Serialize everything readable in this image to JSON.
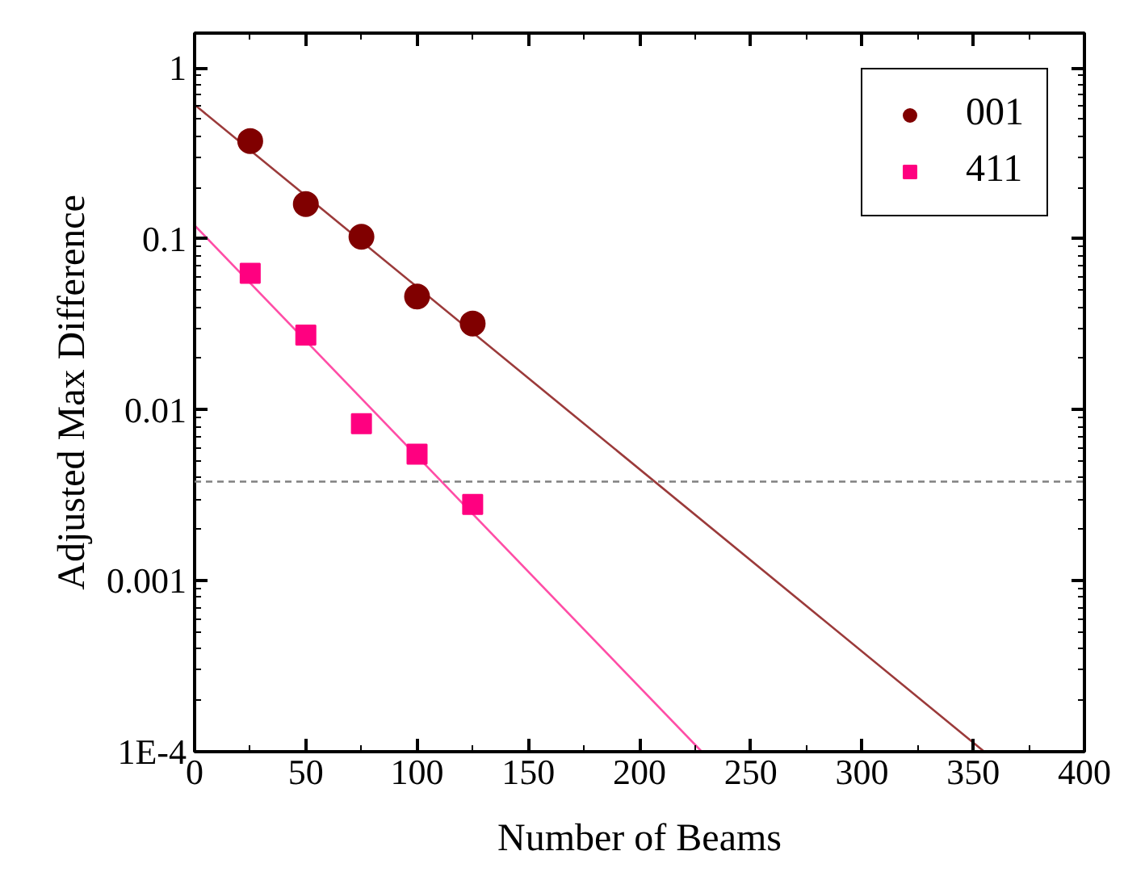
{
  "chart_data": {
    "type": "scatter",
    "xlabel": "Number of Beams",
    "ylabel": "Adjusted Max Difference",
    "log": "y",
    "grid": false,
    "legend": "top right",
    "xlim": [
      0,
      400
    ],
    "xticks": [
      0,
      50,
      100,
      150,
      200,
      250,
      300,
      350,
      400
    ],
    "ylim": [
      0.0001,
      1.6
    ],
    "yticks": [
      {
        "value": 0.0001,
        "label": "1E-4"
      },
      0.001,
      0.01,
      0.1,
      1
    ],
    "series": [
      {
        "name": "001",
        "marker": "circle",
        "color": "#800000",
        "x": [
          25,
          50,
          75,
          100,
          125
        ],
        "values": [
          0.374,
          0.16,
          0.103,
          0.046,
          0.032
        ]
      },
      {
        "name": "411",
        "marker": "square",
        "color": "#ff0080",
        "x": [
          25,
          50,
          75,
          100,
          125
        ],
        "values": [
          0.063,
          0.0274,
          0.0083,
          0.0055,
          0.0028
        ]
      },
      {
        "type": "line",
        "color": "#9b3a3a",
        "line_style": "solid",
        "x": [
          0,
          355
        ],
        "values": [
          0.61,
          0.0001
        ]
      },
      {
        "type": "line",
        "color": "#ff4da6",
        "line_style": "solid",
        "x": [
          0,
          228
        ],
        "values": [
          0.12,
          0.0001
        ]
      }
    ],
    "ref_lines": [
      {
        "axis": "y",
        "value": 0.0038,
        "color": "#808080",
        "line_style": "dashed"
      }
    ]
  }
}
